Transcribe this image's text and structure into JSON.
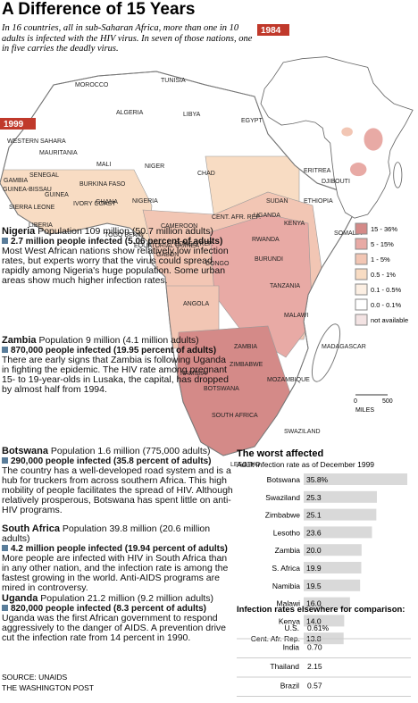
{
  "header": {
    "title": "A Difference of 15 Years",
    "subtitle": "In 16 countries, all in sub-Saharan Africa, more than one in 10 adults is infected with the HIV virus. In seven of those nations, one in five carries the deadly virus."
  },
  "map": {
    "main_year": "1999",
    "inset_year": "1984",
    "labels": [
      "MOROCCO",
      "TUNISIA",
      "ALGERIA",
      "LIBYA",
      "EGYPT",
      "WESTERN SAHARA",
      "MAURITANIA",
      "MALI",
      "NIGER",
      "CHAD",
      "SUDAN",
      "ERITREA",
      "DJIBOUTI",
      "ETHIOPIA",
      "SOMALIA",
      "SENEGAL",
      "GAMBIA",
      "GUINEA-BISSAU",
      "GUINEA",
      "SIERRA LEONE",
      "LIBERIA",
      "IVORY COAST",
      "BURKINA FASO",
      "GHANA",
      "TOGO BENIN",
      "NIGERIA",
      "CAMEROON",
      "CENT. AFR. REP.",
      "EQUATORIAL GUINEA",
      "GABON",
      "CONGO REP.",
      "CONGO",
      "UGANDA",
      "KENYA",
      "RWANDA",
      "BURUNDI",
      "TANZANIA",
      "ANGOLA",
      "ZAMBIA",
      "MALAWI",
      "ZIMBABWE",
      "MOZAMBIQUE",
      "MADAGASCAR",
      "NAMIBIA",
      "BOTSWANA",
      "SOUTH AFRICA",
      "SWAZILAND",
      "LESOTHO"
    ],
    "scale": {
      "zero": "0",
      "distance": "500",
      "unit": "MILES"
    }
  },
  "legend": {
    "items": [
      {
        "label": "15 - 36%",
        "color": "#d48a88"
      },
      {
        "label": "5 - 15%",
        "color": "#e8aaa5"
      },
      {
        "label": "1 - 5%",
        "color": "#f2c6b4"
      },
      {
        "label": "0.5 - 1%",
        "color": "#f8dcc3"
      },
      {
        "label": "0.1 - 0.5%",
        "color": "#fcefe3"
      },
      {
        "label": "0.0 - 0.1%",
        "color": "#ffffff"
      },
      {
        "label": "not available",
        "color": "#f3e3e3"
      }
    ]
  },
  "profiles": [
    {
      "name": "Nigeria",
      "population": "Population 109 million (50.7 million adults)",
      "infected": "2.7 million people infected (5.06 percent of adults)",
      "text": "Most West African nations show relatively low infection rates, but experts worry that the virus could spread rapidly among Nigeria's huge population. Some urban areas show much higher infection rates."
    },
    {
      "name": "Zambia",
      "population": "Population 9 million (4.1 million adults)",
      "infected": "870,000 people infected (19.95 percent of adults)",
      "text": "There are early signs that Zambia is following Uganda in fighting the epidemic. The HIV rate among pregnant 15- to 19-year-olds in Lusaka, the capital, has dropped by almost half from 1994."
    },
    {
      "name": "Botswana",
      "population": "Population 1.6 million (775,000 adults)",
      "infected": "290,000 people infected (35.8 percent of adults)",
      "text": "The country has a well-developed road system and is a hub for truckers from across southern Africa. This high mobility of people facilitates the spread of HIV. Although relatively prosperous, Botswana has spent little on anti-HIV programs."
    },
    {
      "name": "South Africa",
      "population": "Population 39.8 million (20.6 million adults)",
      "infected": "4.2 million people infected (19.94 percent of adults)",
      "text": "More people are infected with HIV in South Africa than in any other nation, and the infection rate is among the fastest growing in the world. Anti-AIDS programs are mired in controversy."
    },
    {
      "name": "Uganda",
      "population": "Population 21.2 million (9.2 million adults)",
      "infected": "820,000 people infected (8.3 percent of adults)",
      "text": "Uganda was the first African government to respond aggressively to the danger of AIDS. A prevention drive cut the infection rate from 14 percent in 1990."
    }
  ],
  "chart_data": {
    "type": "bar",
    "title": "The worst affected",
    "subtitle": "Adult infection rate as of December 1999",
    "categories": [
      "Botswana",
      "Swaziland",
      "Zimbabwe",
      "Lesotho",
      "Zambia",
      "S. Africa",
      "Namibia",
      "Malawi",
      "Kenya",
      "Cent. Afr. Rep."
    ],
    "values": [
      35.8,
      25.3,
      25.1,
      23.6,
      20.0,
      19.9,
      19.5,
      16.0,
      14.0,
      13.8
    ],
    "value_labels": [
      "35.8%",
      "25.3",
      "25.1",
      "23.6",
      "20.0",
      "19.9",
      "19.5",
      "16.0",
      "14.0",
      "13.8"
    ],
    "color": "#d9d9d9"
  },
  "comparison": {
    "title": "Infection rates elsewhere for comparison:",
    "rows": [
      [
        "U.S.",
        "0.61%"
      ],
      [
        "India",
        "0.70"
      ],
      [
        "Thailand",
        "2.15"
      ],
      [
        "Brazil",
        "0.57"
      ]
    ]
  },
  "footer": {
    "source": "SOURCE: UNAIDS",
    "credit": "THE WASHINGTON POST"
  }
}
